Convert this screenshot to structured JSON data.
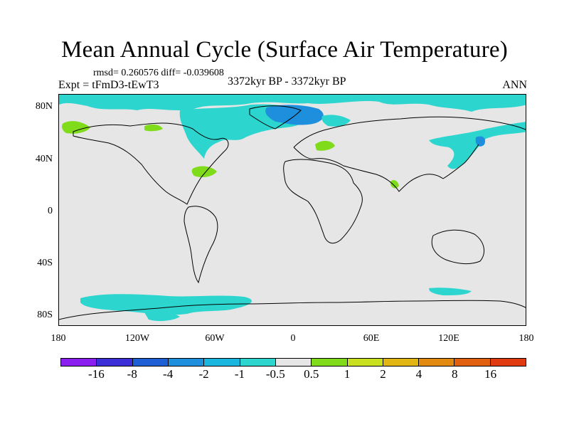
{
  "title": "Mean Annual Cycle (Surface Air Temperature)",
  "stats": "rmsd= 0.260576 diff= -0.039608",
  "experiment": "Expt = tFmD3-tEwT3",
  "period": "3372kyr BP - 3372kyr BP",
  "season": "ANN",
  "lat_ticks": [
    "80N",
    "40N",
    "0",
    "40S",
    "80S"
  ],
  "lon_ticks": [
    "180",
    "120W",
    "60W",
    "0",
    "60E",
    "120E",
    "180"
  ],
  "colorbar": {
    "labels": [
      "-16",
      "-8",
      "-4",
      "-2",
      "-1",
      "-0.5",
      "0.5",
      "1",
      "2",
      "4",
      "8",
      "16"
    ],
    "colors": [
      "#8a1ff0",
      "#3d2fd8",
      "#1f5fd6",
      "#1d8fdc",
      "#19b6e0",
      "#2cd6cf",
      "#e6e6e6",
      "#80dc1a",
      "#c8e01e",
      "#e2b612",
      "#e28a10",
      "#e06010",
      "#e03a10"
    ]
  },
  "map": {
    "ocean_color": "#e6e6e6",
    "coast_color": "#000000"
  }
}
